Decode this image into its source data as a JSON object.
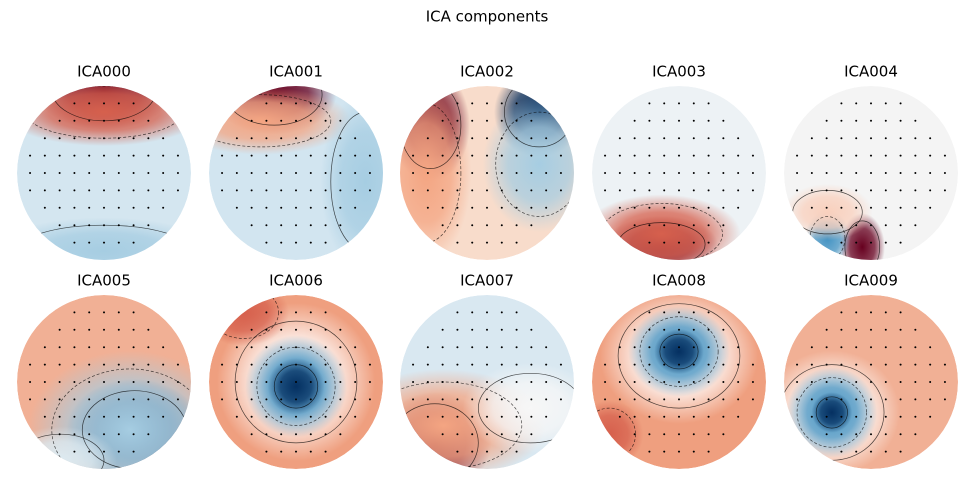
{
  "chart_data": {
    "type": "topomap",
    "title": "ICA components",
    "panels": [
      "ICA000",
      "ICA001",
      "ICA002",
      "ICA003",
      "ICA004",
      "ICA005",
      "ICA006",
      "ICA007",
      "ICA008",
      "ICA009"
    ]
  }
}
